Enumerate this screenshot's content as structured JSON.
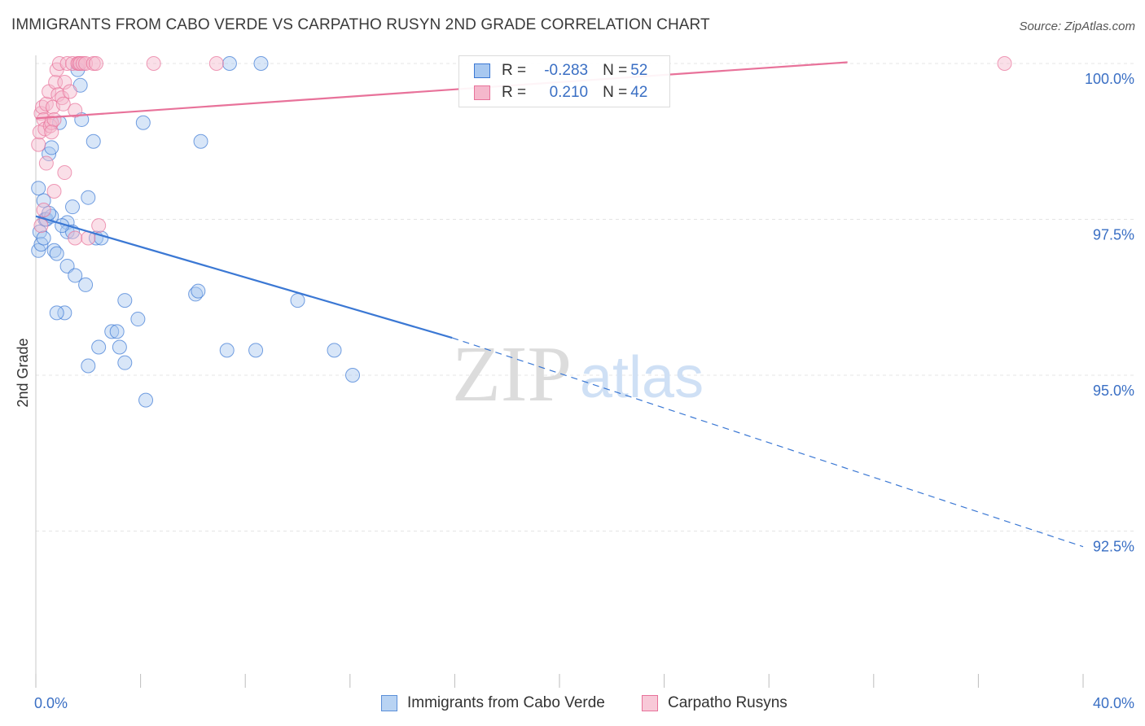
{
  "title": "IMMIGRANTS FROM CABO VERDE VS CARPATHO RUSYN 2ND GRADE CORRELATION CHART",
  "source": "Source: ZipAtlas.com",
  "watermark": {
    "zip": "ZIP",
    "atlas": "atlas"
  },
  "colors": {
    "blue": "#3b78d4",
    "blue_fill": "#a8c8f0",
    "pink": "#e8729a",
    "pink_fill": "#f5b8cc",
    "axis_text": "#3a6fc4",
    "grid": "#e4e4e4"
  },
  "legend_top": {
    "rows": [
      {
        "r_label": "R =",
        "r_value": "-0.283",
        "n_label": "N =",
        "n_value": "52"
      },
      {
        "r_label": "R =",
        "r_value": "0.210",
        "n_label": "N =",
        "n_value": "42"
      }
    ]
  },
  "legend_bottom": {
    "items": [
      {
        "label": "Immigrants from Cabo Verde"
      },
      {
        "label": "Carpatho Rusyns"
      }
    ]
  },
  "chart_data": {
    "type": "scatter",
    "title": "IMMIGRANTS FROM CABO VERDE VS CARPATHO RUSYN 2ND GRADE CORRELATION CHART",
    "xlabel": "",
    "ylabel": "2nd Grade",
    "xlim": [
      0,
      40
    ],
    "ylim": [
      90.0,
      100.4
    ],
    "x_tick_labels": [
      "0.0%",
      "40.0%"
    ],
    "y_ticks": [
      100.0,
      97.5,
      95.0,
      92.5
    ],
    "y_tick_labels": [
      "100.0%",
      "97.5%",
      "95.0%",
      "92.5%"
    ],
    "grid": true,
    "series": [
      {
        "name": "Immigrants from Cabo Verde",
        "color": "#3b78d4",
        "r": -0.283,
        "n": 52,
        "trend": {
          "x0": 0,
          "y0": 97.55,
          "x1": 15.9,
          "y1": 95.6,
          "dash_to_x": 40,
          "dash_to_y": 92.25
        },
        "points": [
          [
            0.1,
            97.0
          ],
          [
            0.1,
            98.0
          ],
          [
            0.15,
            97.3
          ],
          [
            0.2,
            97.1
          ],
          [
            0.3,
            97.8
          ],
          [
            0.35,
            97.5
          ],
          [
            0.4,
            97.5
          ],
          [
            0.5,
            98.55
          ],
          [
            0.6,
            98.65
          ],
          [
            0.6,
            97.55
          ],
          [
            0.7,
            97.0
          ],
          [
            0.8,
            96.95
          ],
          [
            0.9,
            99.05
          ],
          [
            1.2,
            97.45
          ],
          [
            1.2,
            97.3
          ],
          [
            1.2,
            96.75
          ],
          [
            1.4,
            97.7
          ],
          [
            1.4,
            97.3
          ],
          [
            1.5,
            96.6
          ],
          [
            1.6,
            99.9
          ],
          [
            1.7,
            99.65
          ],
          [
            1.75,
            99.1
          ],
          [
            1.9,
            96.45
          ],
          [
            2.0,
            97.85
          ],
          [
            2.2,
            98.75
          ],
          [
            2.3,
            97.2
          ],
          [
            2.5,
            97.2
          ],
          [
            1.1,
            96.0
          ],
          [
            2.4,
            95.45
          ],
          [
            2.0,
            95.15
          ],
          [
            2.9,
            95.7
          ],
          [
            3.1,
            95.7
          ],
          [
            3.2,
            95.45
          ],
          [
            3.4,
            95.2
          ],
          [
            3.4,
            96.2
          ],
          [
            3.9,
            95.9
          ],
          [
            4.1,
            99.05
          ],
          [
            4.2,
            94.6
          ],
          [
            6.1,
            96.3
          ],
          [
            6.2,
            96.35
          ],
          [
            6.3,
            98.75
          ],
          [
            7.4,
            100.0
          ],
          [
            7.3,
            95.4
          ],
          [
            8.4,
            95.4
          ],
          [
            8.6,
            100.0
          ],
          [
            10.0,
            96.2
          ],
          [
            11.4,
            95.4
          ],
          [
            12.1,
            95.0
          ],
          [
            0.5,
            97.6
          ],
          [
            0.8,
            96.0
          ],
          [
            1.0,
            97.4
          ],
          [
            0.3,
            97.2
          ]
        ]
      },
      {
        "name": "Carpatho Rusyns",
        "color": "#e8729a",
        "r": 0.21,
        "n": 42,
        "trend": {
          "x0": 0,
          "y0": 99.12,
          "x1": 31,
          "y1": 100.02
        },
        "points": [
          [
            0.1,
            98.7
          ],
          [
            0.15,
            98.9
          ],
          [
            0.2,
            99.2
          ],
          [
            0.25,
            99.3
          ],
          [
            0.3,
            99.1
          ],
          [
            0.35,
            98.95
          ],
          [
            0.4,
            99.35
          ],
          [
            0.4,
            98.4
          ],
          [
            0.5,
            99.55
          ],
          [
            0.55,
            99.0
          ],
          [
            0.6,
            99.05
          ],
          [
            0.65,
            99.3
          ],
          [
            0.7,
            99.1
          ],
          [
            0.75,
            99.7
          ],
          [
            0.8,
            99.9
          ],
          [
            0.85,
            99.5
          ],
          [
            0.9,
            100.0
          ],
          [
            1.0,
            99.45
          ],
          [
            1.05,
            99.35
          ],
          [
            1.1,
            99.7
          ],
          [
            1.1,
            98.25
          ],
          [
            1.2,
            100.0
          ],
          [
            1.3,
            99.55
          ],
          [
            1.4,
            100.0
          ],
          [
            1.5,
            99.25
          ],
          [
            1.5,
            97.2
          ],
          [
            1.6,
            100.0
          ],
          [
            1.65,
            100.0
          ],
          [
            1.7,
            100.0
          ],
          [
            1.8,
            100.0
          ],
          [
            1.9,
            100.0
          ],
          [
            2.0,
            97.2
          ],
          [
            2.2,
            100.0
          ],
          [
            2.3,
            100.0
          ],
          [
            2.4,
            97.4
          ],
          [
            4.5,
            100.0
          ],
          [
            6.9,
            100.0
          ],
          [
            0.7,
            97.95
          ],
          [
            0.3,
            97.65
          ],
          [
            0.2,
            97.4
          ],
          [
            37.0,
            100.0
          ],
          [
            0.6,
            98.9
          ]
        ]
      }
    ]
  }
}
